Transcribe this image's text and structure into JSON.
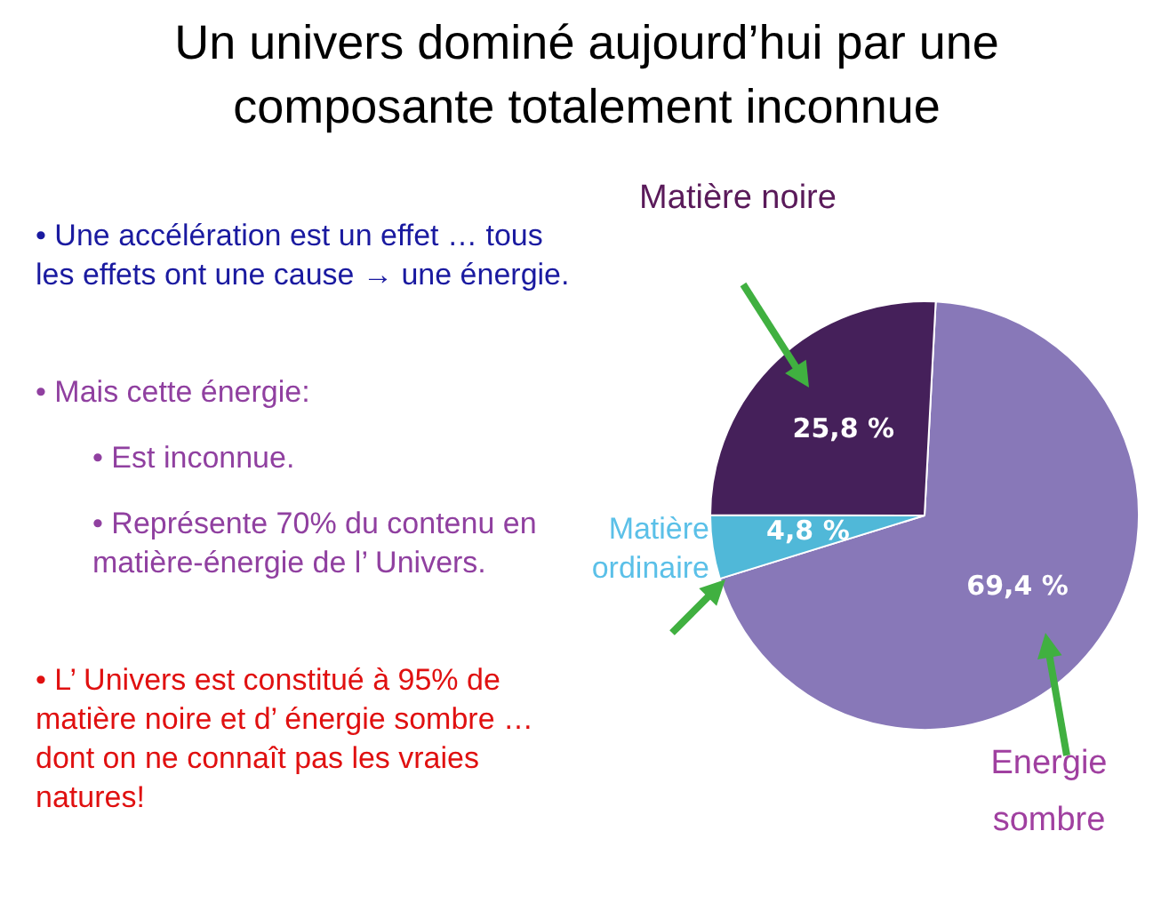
{
  "chart_data": {
    "type": "pie",
    "title": "Un univers dominé aujourd’hui par une composante totalement inconnue",
    "categories": [
      "Energie sombre",
      "Matière ordinaire",
      "Matière noire"
    ],
    "values": [
      69.4,
      4.8,
      25.8
    ],
    "value_labels": [
      "69,4 %",
      "4,8 %",
      "25,8 %"
    ],
    "colors": [
      "#8878b8",
      "#50b8d8",
      "#45205a"
    ],
    "legend": false,
    "annotations": [
      "• Une accélération est un effet … tous les effets ont une cause → une énergie.",
      "• Mais cette énergie:",
      "• Est inconnue.",
      "• Représente 70% du contenu en matière-énergie de l’ Univers.",
      "• L’ Univers est constitué à 95% de matière noire et d’ énergie sombre … dont on ne connaît pas les vraies natures!"
    ]
  }
}
